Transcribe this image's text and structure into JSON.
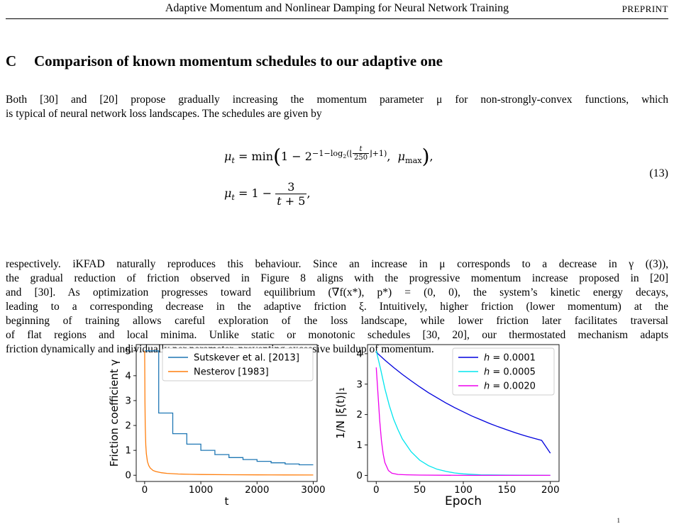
{
  "running_head": {
    "title": "Adaptive Momentum and Nonlinear Damping for Neural Network Training",
    "tag": "PREPRINT"
  },
  "section": {
    "number": "C",
    "title": "Comparison of known momentum schedules to our adaptive one"
  },
  "intro_lines": [
    "Both [30] and [20] propose gradually increasing the momentum parameter μ for non-strongly-convex functions, which",
    "is typical of neural network loss landscapes. The schedules are given by"
  ],
  "equation": {
    "number": "(13)"
  },
  "body_lines": [
    "respectively. iKFAD naturally reproduces this behaviour. Since an increase in μ corresponds to a decrease in γ ((3)),",
    "the gradual reduction of friction observed in Figure 8 aligns with the progressive momentum increase proposed in [20]",
    "and [30]. As optimization progresses toward equilibrium (∇f(x*), p*) = (0, 0), the system’s kinetic energy decays,",
    "leading to a corresponding decrease in the adaptive friction ξ. Intuitively, higher friction (lower momentum) at the",
    "beginning of training allows careful exploration of the loss landscape, while lower friction later facilitates traversal",
    "of flat regions and local minima. Unlike static or monotonic schedules [30, 20], our thermostated mechanism adapts",
    "friction dynamically and individually per parameter, preventing excessive buildup of momentum."
  ],
  "page_mark": "1",
  "chart_data": [
    {
      "type": "line",
      "title": "",
      "xlabel": "t",
      "ylabel": "Friction coefficient γ",
      "xlim": [
        -150,
        3070
      ],
      "ylim": [
        -0.25,
        5.25
      ],
      "xticks": [
        0,
        1000,
        2000,
        3000
      ],
      "yticks": [
        0,
        1,
        2,
        3,
        4,
        5
      ],
      "grid": false,
      "legend_position": "top-right",
      "series": [
        {
          "name": "Sutskever et al. [2013]",
          "color": "#1f77b4",
          "step": true,
          "x": [
            0,
            250,
            250,
            500,
            500,
            750,
            750,
            1000,
            1000,
            1250,
            1250,
            1500,
            1500,
            1750,
            1750,
            2000,
            2000,
            2250,
            2250,
            2500,
            2500,
            2750,
            2750,
            3000
          ],
          "y": [
            5,
            5,
            2.5,
            2.5,
            1.67,
            1.67,
            1.25,
            1.25,
            1.0,
            1.0,
            0.83,
            0.83,
            0.71,
            0.71,
            0.63,
            0.63,
            0.56,
            0.56,
            0.5,
            0.5,
            0.45,
            0.45,
            0.42,
            0.42
          ]
        },
        {
          "name": "Nesterov [1983]",
          "color": "#ff7f0e",
          "x": [
            0,
            5,
            10,
            20,
            30,
            50,
            75,
            100,
            150,
            200,
            300,
            400,
            600,
            800,
            1000,
            1500,
            2000,
            2500,
            3000
          ],
          "y": [
            5,
            3.0,
            2.0,
            1.2,
            0.86,
            0.55,
            0.38,
            0.29,
            0.19,
            0.15,
            0.1,
            0.074,
            0.05,
            0.037,
            0.03,
            0.02,
            0.015,
            0.012,
            0.01
          ]
        }
      ]
    },
    {
      "type": "line",
      "title": "",
      "xlabel": "Epoch",
      "ylabel": "1/N |ξ(t)|₁",
      "xlim": [
        -10,
        210
      ],
      "ylim": [
        -0.2,
        4.3
      ],
      "xticks": [
        0,
        50,
        100,
        150,
        200
      ],
      "yticks": [
        0,
        1,
        2,
        3,
        4
      ],
      "grid": false,
      "legend_position": "top-right",
      "series": [
        {
          "name": "h = 0.0001",
          "legend_var": "h",
          "legend_value": "= 0.0001",
          "color": "#0000dd",
          "x": [
            0,
            10,
            20,
            30,
            40,
            50,
            60,
            70,
            80,
            90,
            100,
            110,
            120,
            130,
            140,
            150,
            160,
            170,
            180,
            190,
            200
          ],
          "y": [
            4.05,
            3.79,
            3.55,
            3.32,
            3.11,
            2.91,
            2.72,
            2.55,
            2.38,
            2.23,
            2.09,
            1.95,
            1.83,
            1.71,
            1.6,
            1.5,
            1.4,
            1.31,
            1.23,
            1.15,
            0.73
          ]
        },
        {
          "name": "h = 0.0005",
          "legend_var": "h",
          "legend_value": "= 0.0005",
          "color": "#00e5ee",
          "x": [
            0,
            5,
            10,
            15,
            20,
            25,
            30,
            40,
            50,
            60,
            70,
            80,
            90,
            100,
            120,
            150,
            200
          ],
          "y": [
            4.1,
            3.5,
            2.85,
            2.3,
            1.85,
            1.5,
            1.2,
            0.78,
            0.5,
            0.32,
            0.2,
            0.13,
            0.08,
            0.05,
            0.02,
            0.01,
            0.0
          ]
        },
        {
          "name": "h = 0.0020",
          "legend_var": "h",
          "legend_value": "= 0.0020",
          "color": "#ee00ee",
          "x": [
            0,
            2,
            4,
            6,
            8,
            10,
            14,
            18,
            25,
            35,
            50,
            100,
            150,
            200
          ],
          "y": [
            3.55,
            2.7,
            1.8,
            1.15,
            0.7,
            0.42,
            0.16,
            0.07,
            0.03,
            0.02,
            0.01,
            0.0,
            0.0,
            0.0
          ]
        }
      ]
    }
  ]
}
